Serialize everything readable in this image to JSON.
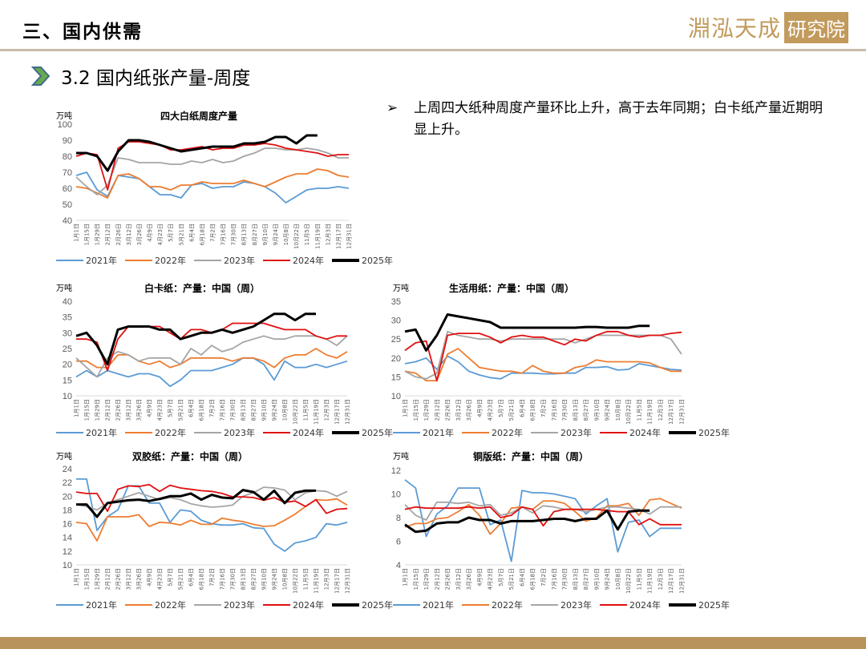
{
  "header": {
    "section_title": "三、国内供需",
    "logo_text": "淵泓天成",
    "logo_box": "研究院"
  },
  "subtitle": "3.2 国内纸张产量-周度",
  "bullet": {
    "mark": "➢",
    "text": "上周四大纸种周度产量环比上升，高于去年同期；白卡纸产量近期明显上升。"
  },
  "colors": {
    "2021年": "#5b9bd5",
    "2022年": "#ed7d31",
    "2023年": "#a5a5a5",
    "2024年": "#e01010",
    "2025年": "#000000",
    "accent": "#b8945c"
  },
  "chart_data": [
    {
      "type": "line",
      "title": "四大白纸周度产量",
      "ylabel": "万吨",
      "ylim": [
        40,
        100
      ],
      "yticks": [
        "40",
        "50",
        "60",
        "70",
        "80",
        "90",
        "100"
      ],
      "x_ticks": [
        "1月1日",
        "1月15日",
        "1月29日",
        "2月12日",
        "2月26日",
        "3月12日",
        "3月26日",
        "4月9日",
        "4月23日",
        "5月7日",
        "5月21日",
        "6月4日",
        "6月18日",
        "7月2日",
        "7月16日",
        "7月30日",
        "8月13日",
        "8月27日",
        "9月10日",
        "9月24日",
        "10月8日",
        "10月22日",
        "11月5日",
        "11月19日",
        "12月3日",
        "12月17日",
        "12月31日"
      ],
      "series": [
        {
          "name": "2021年",
          "values": [
            68,
            70,
            59,
            55,
            68,
            67,
            66,
            61,
            56,
            56,
            54,
            62,
            63,
            60,
            61,
            61,
            64,
            63,
            61,
            57,
            51,
            55,
            59,
            60,
            60,
            61,
            60
          ]
        },
        {
          "name": "2022年",
          "values": [
            61,
            60,
            57,
            54,
            68,
            69,
            66,
            61,
            61,
            59,
            62,
            62,
            64,
            63,
            63,
            63,
            65,
            63,
            61,
            64,
            67,
            69,
            69,
            72,
            71,
            68,
            67
          ]
        },
        {
          "name": "2023年",
          "values": [
            67,
            61,
            56,
            62,
            79,
            78,
            76,
            76,
            76,
            75,
            75,
            77,
            76,
            78,
            76,
            77,
            80,
            82,
            85,
            85,
            84,
            84,
            85,
            84,
            82,
            79,
            79
          ]
        },
        {
          "name": "2024年",
          "values": [
            80,
            82,
            81,
            59,
            85,
            89,
            89,
            88,
            87,
            84,
            84,
            85,
            86,
            84,
            85,
            85,
            87,
            87,
            88,
            87,
            85,
            84,
            83,
            82,
            80,
            81,
            81
          ]
        },
        {
          "name": "2025年",
          "values": [
            82,
            82,
            80,
            71,
            83,
            90,
            90,
            89,
            87,
            85,
            83,
            84,
            85,
            86,
            86,
            86,
            88,
            88,
            89,
            92,
            92,
            88,
            93,
            93
          ]
        }
      ]
    },
    {
      "type": "line",
      "title": "白卡纸：产量：中国（周）",
      "ylabel": "万吨",
      "ylim": [
        10,
        40
      ],
      "yticks": [
        "10",
        "15",
        "20",
        "25",
        "30",
        "35",
        "40"
      ],
      "x_ticks": [
        "1月1日",
        "1月15日",
        "1月29日",
        "2月12日",
        "2月26日",
        "3月12日",
        "3月26日",
        "4月9日",
        "4月23日",
        "5月7日",
        "5月21日",
        "6月4日",
        "6月18日",
        "7月2日",
        "7月16日",
        "7月30日",
        "8月13日",
        "8月27日",
        "9月10日",
        "9月24日",
        "10月8日",
        "10月22日",
        "11月5日",
        "11月19日",
        "12月3日",
        "12月17日",
        "12月31日"
      ],
      "series": [
        {
          "name": "2021年",
          "values": [
            16,
            18,
            16,
            18,
            17,
            16,
            17,
            17,
            16,
            13,
            15,
            18,
            18,
            18,
            19,
            20,
            22,
            22,
            20,
            15,
            21,
            19,
            19,
            20,
            19,
            20,
            21
          ]
        },
        {
          "name": "2022年",
          "values": [
            21,
            21,
            19,
            19,
            23,
            23,
            21,
            20,
            21,
            19,
            20,
            22,
            22,
            22,
            22,
            21,
            22,
            22,
            21,
            19,
            22,
            23,
            23,
            25,
            23,
            22,
            24
          ]
        },
        {
          "name": "2023年",
          "values": [
            22,
            19,
            16,
            22,
            24,
            23,
            21,
            22,
            22,
            22,
            20,
            25,
            23,
            26,
            24,
            25,
            27,
            28,
            29,
            28,
            28,
            29,
            29,
            29,
            28,
            26,
            29
          ]
        },
        {
          "name": "2024年",
          "values": [
            28,
            28,
            27,
            18,
            28,
            32,
            32,
            32,
            32,
            30,
            28,
            31,
            31,
            30,
            31,
            33,
            33,
            33,
            33,
            32,
            31,
            31,
            31,
            29,
            28,
            29,
            29
          ]
        },
        {
          "name": "2025年",
          "values": [
            29,
            30,
            26,
            20,
            31,
            32,
            32,
            32,
            31,
            31,
            28,
            29,
            30,
            30,
            31,
            30,
            31,
            32,
            34,
            36,
            36,
            34,
            36,
            36
          ]
        }
      ]
    },
    {
      "type": "line",
      "title": "生活用纸：产量：中国（周）",
      "ylabel": "万吨",
      "ylim": [
        10,
        35
      ],
      "yticks": [
        "10",
        "15",
        "20",
        "25",
        "30",
        "35"
      ],
      "x_ticks": [
        "1月1日",
        "1月15日",
        "1月29日",
        "2月12日",
        "2月26日",
        "3月12日",
        "3月26日",
        "4月9日",
        "4月23日",
        "5月7日",
        "5月21日",
        "6月4日",
        "6月18日",
        "7月2日",
        "7月16日",
        "7月30日",
        "8月13日",
        "8月27日",
        "9月10日",
        "9月24日",
        "10月8日",
        "10月22日",
        "11月5日",
        "11月19日",
        "12月3日",
        "12月17日",
        "12月31日"
      ],
      "series": [
        {
          "name": "2021年",
          "values": [
            18.5,
            19,
            20,
            17,
            20.5,
            19,
            16.5,
            15.5,
            14.8,
            14.5,
            16,
            16,
            16,
            15.8,
            15.8,
            16,
            16,
            17.5,
            17.5,
            17.7,
            16.8,
            17,
            18.5,
            18,
            17.5,
            17,
            16.8
          ]
        },
        {
          "name": "2022年",
          "values": [
            16.5,
            16,
            14,
            14,
            21,
            22.5,
            20,
            17.5,
            17,
            16.5,
            16.5,
            16,
            18,
            16.5,
            16,
            16,
            17.5,
            18,
            19.5,
            19,
            19,
            19,
            19,
            18.7,
            17.5,
            16.5,
            16.5
          ]
        },
        {
          "name": "2023年",
          "values": [
            16.5,
            15,
            14.5,
            16,
            27,
            26,
            25.5,
            25,
            25,
            24.5,
            25,
            25,
            25,
            25,
            25,
            25,
            24,
            25,
            26,
            26,
            26,
            26,
            26,
            26,
            26,
            25,
            21
          ]
        },
        {
          "name": "2024年",
          "values": [
            22,
            24,
            24.5,
            14,
            26,
            26.5,
            26.5,
            26.5,
            25.5,
            24,
            25.5,
            26,
            25.5,
            25.5,
            24.5,
            23.5,
            25,
            24.5,
            26,
            27,
            27,
            26,
            25.5,
            26,
            26,
            26.5,
            26.8
          ]
        },
        {
          "name": "2025年",
          "values": [
            27,
            27.5,
            22,
            26,
            31.5,
            31,
            30.5,
            30,
            29.5,
            28,
            28,
            28,
            28,
            28,
            28,
            28,
            28,
            28.2,
            28.2,
            28,
            28,
            28,
            28.5,
            28.5
          ]
        }
      ]
    },
    {
      "type": "line",
      "title": "双胶纸：产量：中国（周）",
      "ylabel": "万吨",
      "ylim": [
        10,
        24
      ],
      "yticks": [
        "10",
        "12",
        "14",
        "16",
        "18",
        "20",
        "22",
        "24"
      ],
      "x_ticks": [
        "1月1日",
        "1月15日",
        "1月29日",
        "2月12日",
        "2月26日",
        "3月12日",
        "3月26日",
        "4月9日",
        "4月23日",
        "5月7日",
        "5月21日",
        "6月4日",
        "6月18日",
        "7月2日",
        "7月16日",
        "7月30日",
        "8月13日",
        "8月27日",
        "9月10日",
        "9月24日",
        "10月8日",
        "10月22日",
        "11月5日",
        "11月19日",
        "12月3日",
        "12月17日",
        "12月31日"
      ],
      "series": [
        {
          "name": "2021年",
          "values": [
            22.5,
            22.5,
            15,
            17,
            18,
            21.5,
            21.5,
            19,
            19,
            16.2,
            18,
            17.8,
            16.5,
            16,
            15.8,
            15.8,
            16,
            15.4,
            15.3,
            13,
            12,
            13.2,
            13.5,
            14,
            16,
            15.8,
            16.2
          ]
        },
        {
          "name": "2022年",
          "values": [
            16.2,
            16,
            13.5,
            17,
            17,
            17,
            17.3,
            15.6,
            16.2,
            16.1,
            15.8,
            16.5,
            15.9,
            15.9,
            16.8,
            16.5,
            16.3,
            15.9,
            15.6,
            15.7,
            16.5,
            17.4,
            18.5,
            19.5,
            19.4,
            19.6,
            18.7
          ]
        },
        {
          "name": "2023年",
          "values": [
            18.8,
            18.5,
            18,
            19,
            19.5,
            20,
            20.5,
            20,
            19.5,
            19.8,
            19.5,
            18.9,
            18.6,
            18.4,
            18.5,
            18.7,
            20,
            20.5,
            21.3,
            21.2,
            20.9,
            19.5,
            20.5,
            20.8,
            20.7,
            20,
            20.7
          ]
        },
        {
          "name": "2024年",
          "values": [
            20.6,
            20.4,
            20.4,
            17.8,
            21,
            21.5,
            21.4,
            21.7,
            20.7,
            21.6,
            21.2,
            21,
            20.8,
            20.7,
            20.4,
            19.9,
            19.9,
            19.8,
            19.4,
            19.8,
            19.1,
            19.3,
            18.5,
            19.5,
            17.5,
            18.1,
            18.2
          ]
        },
        {
          "name": "2025年",
          "values": [
            18.8,
            18.8,
            17,
            19,
            19.2,
            19.4,
            19.5,
            19.3,
            19.6,
            20,
            20,
            20.4,
            19.5,
            20.2,
            19.8,
            19.7,
            20.9,
            20.6,
            19.5,
            20.8,
            19,
            20.5,
            20.8,
            20.8
          ]
        }
      ]
    },
    {
      "type": "line",
      "title": "铜版纸：产量：中国（周）",
      "ylabel": "万吨",
      "ylim": [
        4,
        12
      ],
      "yticks": [
        "4",
        "6",
        "8",
        "10",
        "12"
      ],
      "x_ticks": [
        "1月1日",
        "1月15日",
        "1月29日",
        "2月12日",
        "2月26日",
        "3月12日",
        "3月26日",
        "4月9日",
        "4月23日",
        "5月7日",
        "5月21日",
        "6月4日",
        "6月18日",
        "7月2日",
        "7月16日",
        "7月30日",
        "8月13日",
        "8月27日",
        "9月10日",
        "9月24日",
        "10月8日",
        "10月22日",
        "11月5日",
        "11月19日",
        "12月3日",
        "12月17日",
        "12月31日"
      ],
      "series": [
        {
          "name": "2021年",
          "values": [
            11.2,
            10.5,
            6.4,
            8.3,
            9,
            10.5,
            10.5,
            10.5,
            7.4,
            7.8,
            4.3,
            10.3,
            10.1,
            10.1,
            10,
            9.8,
            9.6,
            8.3,
            9,
            9.6,
            5.1,
            7.6,
            7.8,
            6.4,
            7.1,
            7.1,
            7.1
          ]
        },
        {
          "name": "2022年",
          "values": [
            7.2,
            7.5,
            7.5,
            7.9,
            8,
            8.5,
            9.1,
            8.2,
            6.6,
            7.5,
            8.8,
            8.9,
            8.7,
            9.4,
            9.4,
            9.2,
            8.5,
            7.7,
            8,
            9,
            9,
            9.2,
            8.2,
            9.5,
            9.6,
            9.2,
            8.8
          ]
        },
        {
          "name": "2023年",
          "values": [
            9.1,
            8.2,
            7.8,
            9.3,
            9.3,
            9.2,
            9.3,
            9,
            9.1,
            8.2,
            8.4,
            8.9,
            8.4,
            9,
            8.9,
            8.7,
            8.7,
            8.5,
            8.7,
            8.9,
            8.9,
            8.8,
            8.7,
            8.3,
            8.9,
            8.9,
            8.9
          ]
        },
        {
          "name": "2024年",
          "values": [
            8.7,
            8.9,
            8.8,
            8.8,
            8.8,
            8.8,
            8.9,
            8.8,
            8.9,
            8,
            8.2,
            8.9,
            8.7,
            7.3,
            8.5,
            8.7,
            8.7,
            8.7,
            8.7,
            8.6,
            8.5,
            8.5,
            7.4,
            7.9,
            7.4,
            7.4,
            7.4
          ]
        },
        {
          "name": "2025年",
          "values": [
            7.4,
            6.8,
            6.9,
            7.5,
            7.6,
            7.6,
            8,
            7.8,
            7.8,
            7.5,
            7.7,
            7.7,
            7.7,
            7.8,
            7.9,
            7.9,
            7.7,
            7.9,
            7.9,
            8.6,
            7,
            8.5,
            8.6,
            8.6
          ]
        }
      ]
    }
  ]
}
